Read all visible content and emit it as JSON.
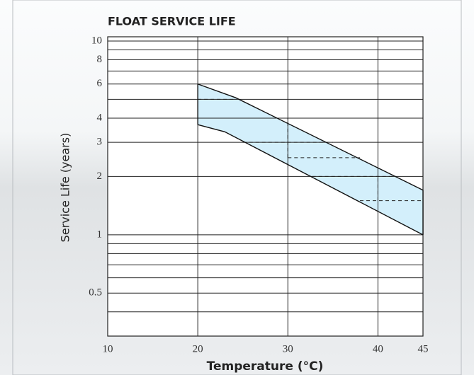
{
  "chart_data": {
    "type": "band",
    "title": "FLOAT SERVICE LIFE",
    "x_label": "Temperature (°C)",
    "y_label": "Service Life (years)",
    "xlim": [
      10,
      45
    ],
    "xticks": [
      10,
      20,
      30,
      40,
      45
    ],
    "ylim": [
      0.3,
      10
    ],
    "log_y": true,
    "yticks": [
      0.5,
      1,
      2,
      3,
      4,
      6,
      8,
      10
    ],
    "y_minor_grid": [
      0.4,
      0.6,
      0.7,
      0.8,
      0.9,
      5,
      7,
      9
    ],
    "x_grid": [
      20,
      30,
      40
    ],
    "grid": true,
    "band_color": "#d3effb",
    "series": [
      {
        "name": "upper",
        "color": "#111111",
        "x": [
          20,
          24.2,
          45
        ],
        "values": [
          6,
          5.1,
          1.7
        ]
      },
      {
        "name": "lower",
        "color": "#111111",
        "x": [
          20,
          23,
          45
        ],
        "values": [
          3.7,
          3.4,
          1
        ]
      }
    ],
    "dashed_lines": [
      {
        "x": [
          20,
          24.2
        ],
        "y": [
          5,
          5
        ]
      },
      {
        "x": [
          20,
          30
        ],
        "y": [
          4,
          4
        ]
      },
      {
        "x": [
          25,
          35
        ],
        "y": [
          3,
          3
        ]
      },
      {
        "x": [
          30,
          38
        ],
        "y": [
          2.5,
          2.5
        ]
      },
      {
        "x": [
          32.7,
          42
        ],
        "y": [
          2,
          2
        ]
      },
      {
        "x": [
          38,
          45
        ],
        "y": [
          1.5,
          1.5
        ]
      },
      {
        "x": [
          30,
          30
        ],
        "y": [
          2.5,
          4
        ]
      },
      {
        "x": [
          40,
          40
        ],
        "y": [
          1.5,
          2
        ]
      }
    ]
  }
}
